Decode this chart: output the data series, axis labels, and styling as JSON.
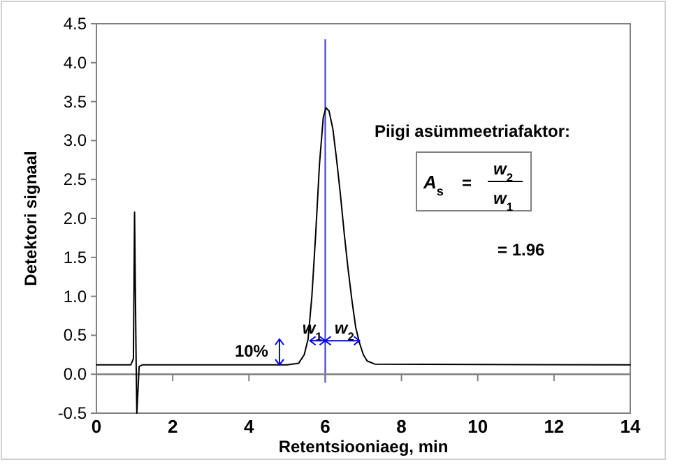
{
  "chart_data": {
    "type": "line",
    "xlabel": "Retentsiooniaeg, min",
    "ylabel": "Detektori signaal",
    "xlim": [
      0,
      14
    ],
    "xticks": [
      0,
      2,
      4,
      6,
      8,
      10,
      12,
      14
    ],
    "ylim": [
      -0.5,
      4.5
    ],
    "yticks": [
      {
        "value": -0.5,
        "label": "-0.5"
      },
      {
        "value": 0,
        "label": "0.0"
      },
      {
        "value": 0.5,
        "label": "0.5"
      },
      {
        "value": 1,
        "label": "1.0"
      },
      {
        "value": 1.5,
        "label": "1.5"
      },
      {
        "value": 2,
        "label": "2.0"
      },
      {
        "value": 2.5,
        "label": "2.5"
      },
      {
        "value": 3,
        "label": "3.0"
      },
      {
        "value": 3.5,
        "label": "3.5"
      },
      {
        "value": 4,
        "label": "4.0"
      },
      {
        "value": 4.5,
        "label": "4.5"
      }
    ],
    "grid": false,
    "marker": "none",
    "line_style": "solid",
    "series": [
      {
        "color": "#000000",
        "x": [
          0,
          0.9,
          0.97,
          1.0,
          1.04,
          1.06,
          1.12,
          1.2,
          5.0,
          5.3,
          5.45,
          5.55,
          5.65,
          5.75,
          5.85,
          5.95,
          6.02,
          6.1,
          6.2,
          6.3,
          6.4,
          6.5,
          6.6,
          6.7,
          6.8,
          6.9,
          7.0,
          7.1,
          7.3,
          14
        ],
        "values": [
          0.12,
          0.12,
          0.2,
          2.08,
          0.2,
          -0.5,
          0.1,
          0.12,
          0.12,
          0.14,
          0.25,
          0.45,
          1.0,
          1.8,
          2.7,
          3.3,
          3.42,
          3.38,
          3.15,
          2.75,
          2.3,
          1.8,
          1.35,
          0.95,
          0.6,
          0.4,
          0.25,
          0.17,
          0.13,
          0.12
        ]
      }
    ],
    "ref_lines": [
      {
        "axis": "x",
        "value": 6,
        "color": "#3333ff"
      },
      {
        "axis": "y",
        "value": 0,
        "color": "#808080"
      }
    ],
    "annotations": [
      "Piigi asümmeetriafaktor:",
      "A$_{s}$",
      "=",
      "w$_{2}$",
      "w$_{1}$",
      "= 1.96",
      "10%",
      "w$_{1}$",
      "w$_{2}$"
    ]
  }
}
